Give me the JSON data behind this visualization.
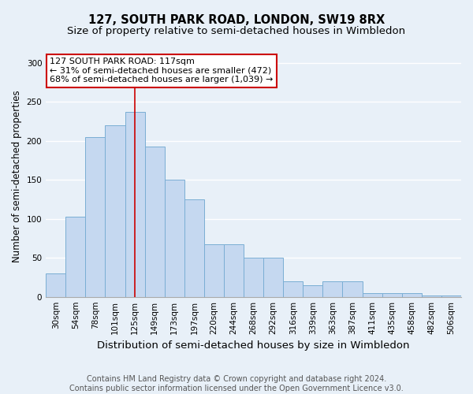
{
  "title_line1": "127, SOUTH PARK ROAD, LONDON, SW19 8RX",
  "title_line2": "Size of property relative to semi-detached houses in Wimbledon",
  "xlabel": "Distribution of semi-detached houses by size in Wimbledon",
  "ylabel": "Number of semi-detached properties",
  "footnote": "Contains HM Land Registry data © Crown copyright and database right 2024.\nContains public sector information licensed under the Open Government Licence v3.0.",
  "categories": [
    "30sqm",
    "54sqm",
    "78sqm",
    "101sqm",
    "125sqm",
    "149sqm",
    "173sqm",
    "197sqm",
    "220sqm",
    "244sqm",
    "268sqm",
    "292sqm",
    "316sqm",
    "339sqm",
    "363sqm",
    "387sqm",
    "411sqm",
    "435sqm",
    "458sqm",
    "482sqm",
    "506sqm"
  ],
  "values": [
    30,
    103,
    205,
    220,
    237,
    193,
    150,
    125,
    67,
    67,
    50,
    50,
    20,
    15,
    20,
    20,
    5,
    5,
    5,
    2,
    2
  ],
  "bar_color": "#c5d8f0",
  "bar_edge_color": "#7aaed4",
  "highlight_index": 4,
  "highlight_color": "#cc0000",
  "ylim": [
    0,
    310
  ],
  "yticks": [
    0,
    50,
    100,
    150,
    200,
    250,
    300
  ],
  "annotation_text": "127 SOUTH PARK ROAD: 117sqm\n← 31% of semi-detached houses are smaller (472)\n68% of semi-detached houses are larger (1,039) →",
  "annotation_box_color": "#ffffff",
  "annotation_box_edge": "#cc0000",
  "background_color": "#e8f0f8",
  "plot_background": "#e8f0f8",
  "grid_color": "#ffffff",
  "title_fontsize": 10.5,
  "subtitle_fontsize": 9.5,
  "xlabel_fontsize": 9.5,
  "ylabel_fontsize": 8.5,
  "tick_fontsize": 7.5,
  "footnote_fontsize": 7,
  "ann_fontsize": 8
}
